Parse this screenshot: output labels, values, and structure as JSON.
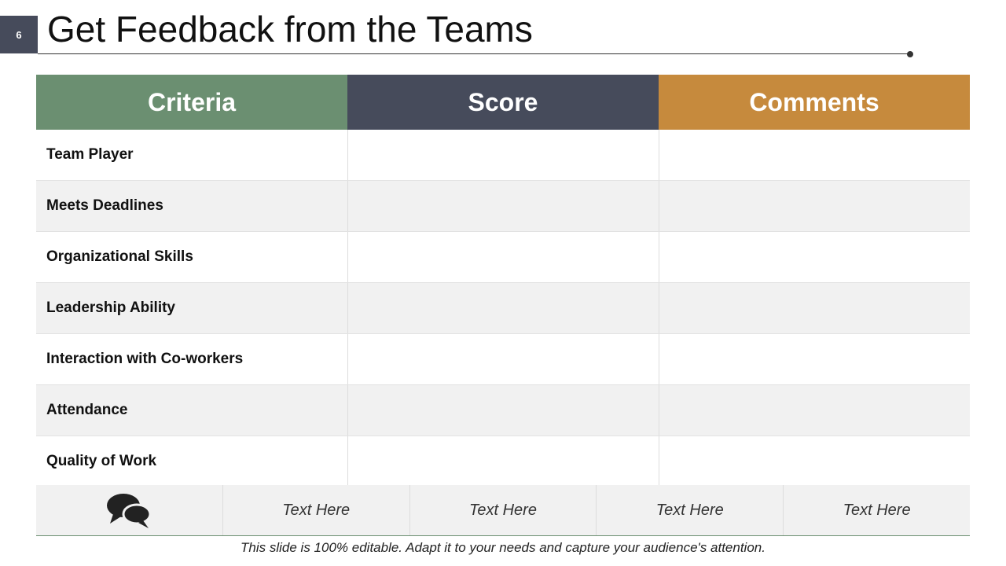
{
  "slide_number": "6",
  "header": {
    "title": "Get Feedback from the Teams"
  },
  "table": {
    "columns": [
      "Criteria",
      "Score",
      "Comments"
    ],
    "rows": [
      [
        "Team Player"
      ],
      [
        "Meets Deadlines"
      ],
      [
        "Organizational Skills"
      ],
      [
        "Leadership Ability"
      ],
      [
        "Interaction with Co-workers"
      ],
      [
        "Attendance"
      ],
      [
        "Quality of Work"
      ]
    ]
  },
  "footer_row": [
    "Text Here",
    "Text Here",
    "Text Here",
    "Text Here"
  ],
  "caption": "This slide is 100% editable. Adapt it to your needs and capture your audience's attention."
}
